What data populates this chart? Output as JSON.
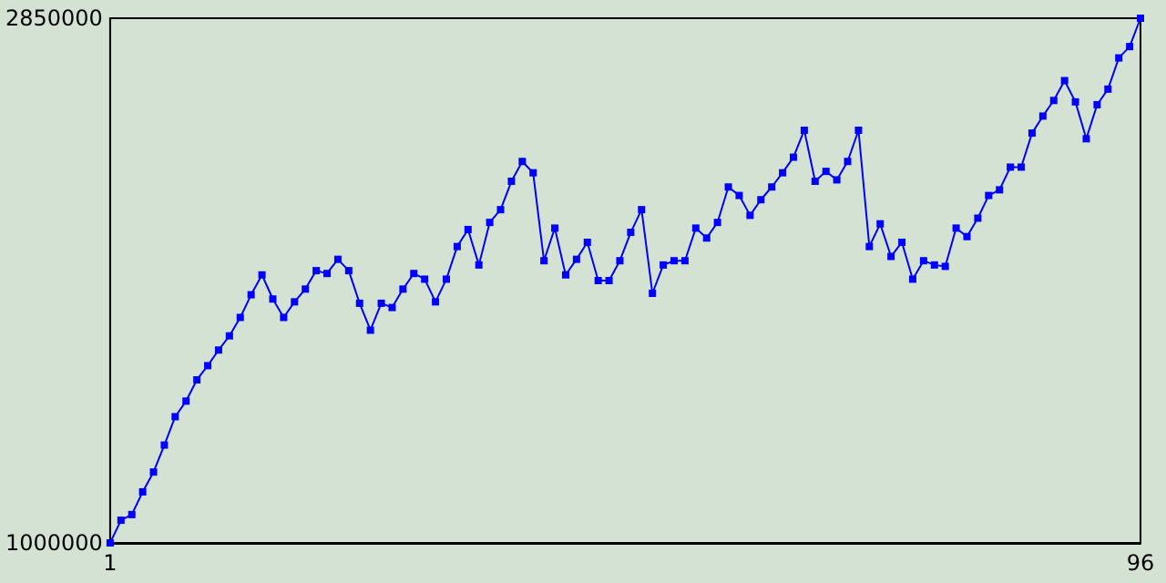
{
  "chart_data": {
    "type": "line",
    "x": [
      1,
      2,
      3,
      4,
      5,
      6,
      7,
      8,
      9,
      10,
      11,
      12,
      13,
      14,
      15,
      16,
      17,
      18,
      19,
      20,
      21,
      22,
      23,
      24,
      25,
      26,
      27,
      28,
      29,
      30,
      31,
      32,
      33,
      34,
      35,
      36,
      37,
      38,
      39,
      40,
      41,
      42,
      43,
      44,
      45,
      46,
      47,
      48,
      49,
      50,
      51,
      52,
      53,
      54,
      55,
      56,
      57,
      58,
      59,
      60,
      61,
      62,
      63,
      64,
      65,
      66,
      67,
      68,
      69,
      70,
      71,
      72,
      73,
      74,
      75,
      76,
      77,
      78,
      79,
      80,
      81,
      82,
      83,
      84,
      85,
      86,
      87,
      88,
      89,
      90,
      91,
      92,
      93,
      94,
      95,
      96
    ],
    "series": [
      {
        "color": "#0000ff",
        "values": [
          1000000,
          1080000,
          1100000,
          1180000,
          1250000,
          1345000,
          1445000,
          1500000,
          1575000,
          1625000,
          1680000,
          1730000,
          1795000,
          1875000,
          1945000,
          1860000,
          1795000,
          1850000,
          1895000,
          1960000,
          1950000,
          2000000,
          1960000,
          1845000,
          1750000,
          1845000,
          1830000,
          1895000,
          1950000,
          1930000,
          1850000,
          1930000,
          2045000,
          2105000,
          1980000,
          2130000,
          2175000,
          2275000,
          2345000,
          2305000,
          1995000,
          2110000,
          1945000,
          2000000,
          2060000,
          1925000,
          1925000,
          1995000,
          2095000,
          2175000,
          1880000,
          1980000,
          1995000,
          1995000,
          2110000,
          2075000,
          2130000,
          2255000,
          2225000,
          2155000,
          2210000,
          2255000,
          2305000,
          2360000,
          2455000,
          2275000,
          2310000,
          2280000,
          2345000,
          2455000,
          2045000,
          2125000,
          2010000,
          2060000,
          1930000,
          1995000,
          1980000,
          1975000,
          2110000,
          2080000,
          2145000,
          2225000,
          2245000,
          2325000,
          2325000,
          2445000,
          2505000,
          2560000,
          2630000,
          2555000,
          2425000,
          2545000,
          2600000,
          2710000,
          2750000,
          2850000
        ]
      }
    ],
    "xlim": [
      1,
      96
    ],
    "xticks": [
      1,
      96
    ],
    "ylim": [
      1000000,
      2850000
    ],
    "yticks": [
      1000000,
      2850000
    ],
    "grid": false,
    "marker": "square",
    "line_style": "solid"
  }
}
